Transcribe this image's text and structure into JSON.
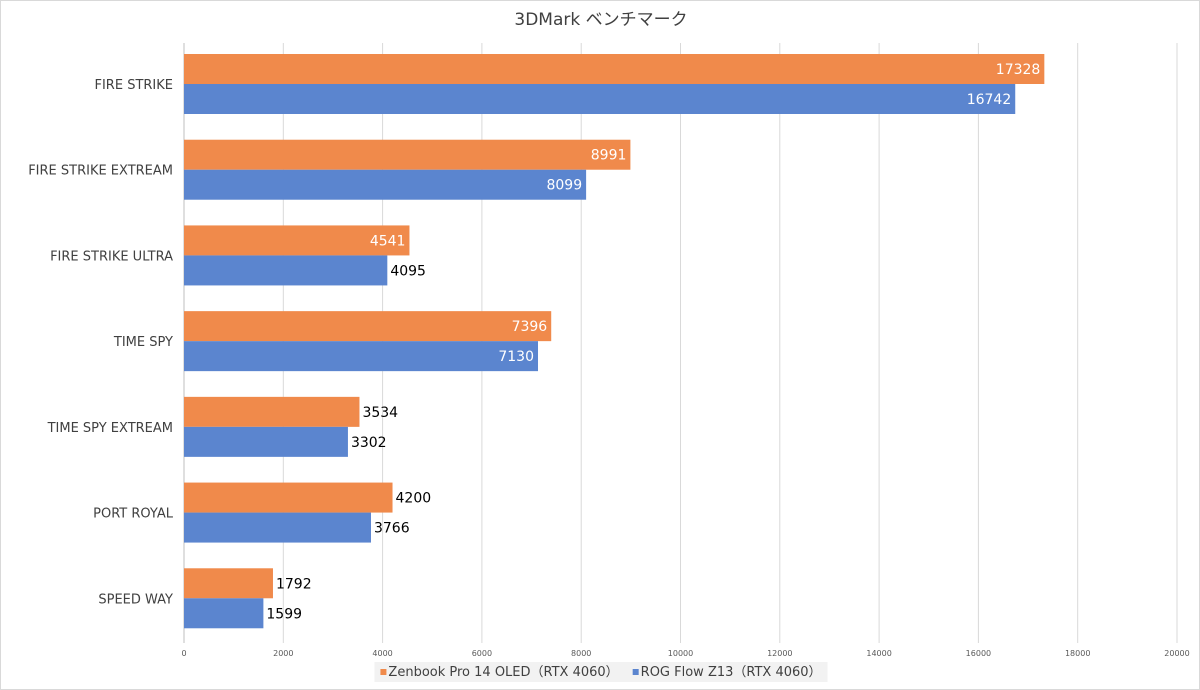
{
  "chart_data": {
    "type": "bar",
    "orientation": "horizontal",
    "title": "3DMark ベンチマーク",
    "categories": [
      "FIRE STRIKE",
      "FIRE STRIKE EXTREAM",
      "FIRE STRIKE ULTRA",
      "TIME SPY",
      "TIME SPY EXTREAM",
      "PORT ROYAL",
      "SPEED WAY"
    ],
    "series": [
      {
        "name": "Zenbook Pro 14 OLED（RTX 4060）",
        "color": "#F08A4B",
        "values": [
          17328,
          8991,
          4541,
          7396,
          3534,
          4200,
          1792
        ]
      },
      {
        "name": "ROG Flow Z13（RTX 4060）",
        "color": "#5B85CF",
        "values": [
          16742,
          8099,
          4095,
          7130,
          3302,
          3766,
          1599
        ]
      }
    ],
    "xlim": [
      0,
      20000
    ],
    "xticks": [
      0,
      2000,
      4000,
      6000,
      8000,
      10000,
      12000,
      14000,
      16000,
      18000,
      20000
    ],
    "grid": true,
    "legend": "bottom",
    "xlabel": "",
    "ylabel": ""
  }
}
